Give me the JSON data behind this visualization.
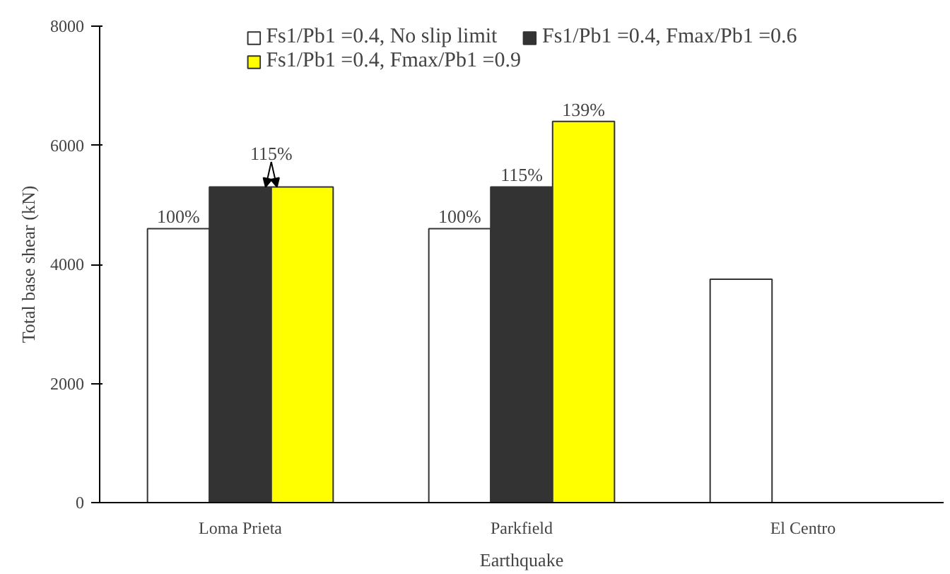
{
  "chart_data": {
    "type": "bar",
    "xlabel": "Earthquake",
    "ylabel": "Total base shear (kN)",
    "categories": [
      "Loma Prieta",
      "Parkfield",
      "El Centro"
    ],
    "series": [
      {
        "name": "Fs1/Pb1 =0.4, No slip limit",
        "color": "#ffffff",
        "values": [
          4600,
          4600,
          3750
        ]
      },
      {
        "name": "Fs1/Pb1 =0.4, Fmax/Pb1 =0.6",
        "color": "#333333",
        "values": [
          5300,
          5300,
          null
        ]
      },
      {
        "name": "Fs1/Pb1 =0.4, Fmax/Pb1 =0.9",
        "color": "#ffff00",
        "values": [
          5300,
          6400,
          null
        ]
      }
    ],
    "annotations": [
      "100%",
      {
        "text": "115%",
        "x": "Loma Prieta",
        "y": 5300
      },
      "100%",
      {
        "text": "115%",
        "x": "Parkfield",
        "y": 5300
      },
      "139%"
    ],
    "ylim": [
      0,
      8000
    ],
    "yticks": [
      0,
      2000,
      4000,
      6000,
      8000
    ],
    "grid": false,
    "legend": "top"
  }
}
